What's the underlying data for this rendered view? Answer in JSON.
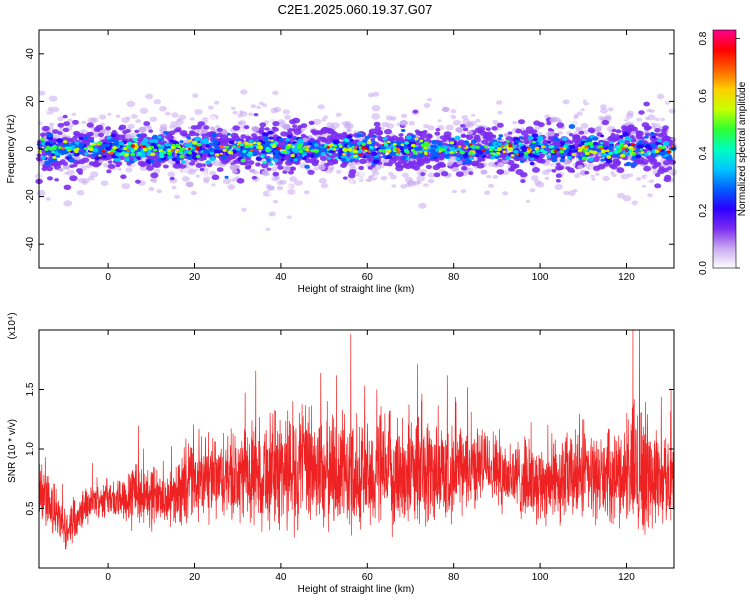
{
  "title": "C2E1.2025.060.19.37.G07",
  "chart_data": [
    {
      "type": "heatmap",
      "xlabel": "Height of straight line (km)",
      "ylabel": "Frequency (Hz)",
      "xlim": [
        -16,
        131
      ],
      "ylim": [
        -50,
        50
      ],
      "xticks": [
        0,
        20,
        40,
        60,
        80,
        100,
        120
      ],
      "xtick_labels": [
        "0",
        "20",
        "40",
        "60",
        "80",
        "100",
        "120"
      ],
      "yticks": [
        -40,
        -20,
        0,
        20,
        40
      ],
      "ytick_labels": [
        "-40",
        "-20",
        "0",
        "20",
        "40"
      ],
      "colorbar": {
        "label": "Normalized spectral amplitude",
        "range": [
          0,
          0.83
        ],
        "ticks": [
          0,
          0.2,
          0.4,
          0.6,
          0.8
        ],
        "tick_labels": [
          "0.0",
          "0.2",
          "0.4",
          "0.6",
          "0.8"
        ],
        "colors": [
          "#ffffff",
          "#c9a8f0",
          "#7b2cf0",
          "#2a00ff",
          "#0060ff",
          "#00c8ff",
          "#00ffc0",
          "#30ff30",
          "#c8ff00",
          "#ffd000",
          "#ff6000",
          "#ff0000",
          "#ff0090"
        ]
      },
      "band": {
        "center_frequency": 0,
        "core_halfwidth": 3,
        "main_halfwidth": 8,
        "halo_halfwidth": 15,
        "wider_regions": [
          -13,
          35,
          125
        ]
      },
      "grid": false
    },
    {
      "type": "line",
      "xlabel": "Height of straight line (km)",
      "ylabel": "SNR (10 * v/v)",
      "y_multiplier": "(x10⁴)",
      "xlim": [
        -16,
        131
      ],
      "ylim": [
        0,
        2.0
      ],
      "xticks": [
        0,
        20,
        40,
        60,
        80,
        100,
        120
      ],
      "xtick_labels": [
        "0",
        "20",
        "40",
        "60",
        "80",
        "100",
        "120"
      ],
      "yticks": [
        0.5,
        1.0,
        1.5
      ],
      "ytick_labels": [
        "0.5",
        "1.0",
        "1.5"
      ],
      "series": [
        {
          "color": "#ee2222",
          "x": [
            -16,
            -14,
            -12,
            -10,
            -8,
            -6,
            -4,
            -2,
            0,
            2,
            4,
            6,
            8,
            10,
            12,
            14,
            16,
            18,
            20,
            25,
            30,
            35,
            40,
            45,
            50,
            55,
            60,
            65,
            70,
            75,
            80,
            85,
            88,
            90,
            95,
            100,
            105,
            110,
            115,
            120,
            123,
            125,
            128,
            131
          ],
          "mean": [
            0.65,
            0.55,
            0.45,
            0.32,
            0.4,
            0.52,
            0.55,
            0.57,
            0.6,
            0.55,
            0.6,
            0.68,
            0.58,
            0.62,
            0.6,
            0.55,
            0.65,
            0.7,
            0.72,
            0.73,
            0.75,
            0.8,
            0.83,
            0.85,
            0.82,
            0.8,
            0.78,
            0.8,
            0.82,
            0.8,
            0.8,
            0.85,
            0.88,
            0.82,
            0.75,
            0.72,
            0.75,
            0.78,
            0.76,
            0.8,
            0.85,
            0.78,
            0.76,
            0.75
          ],
          "amp": [
            0.4,
            0.28,
            0.25,
            0.2,
            0.22,
            0.2,
            0.18,
            0.18,
            0.2,
            0.2,
            0.25,
            0.45,
            0.25,
            0.35,
            0.25,
            0.25,
            0.3,
            0.45,
            0.4,
            0.42,
            0.45,
            0.55,
            0.62,
            0.65,
            0.62,
            0.6,
            0.58,
            0.6,
            0.58,
            0.55,
            0.45,
            0.4,
            0.35,
            0.4,
            0.4,
            0.4,
            0.45,
            0.45,
            0.42,
            0.5,
            0.85,
            0.55,
            0.45,
            0.45
          ]
        }
      ]
    }
  ]
}
